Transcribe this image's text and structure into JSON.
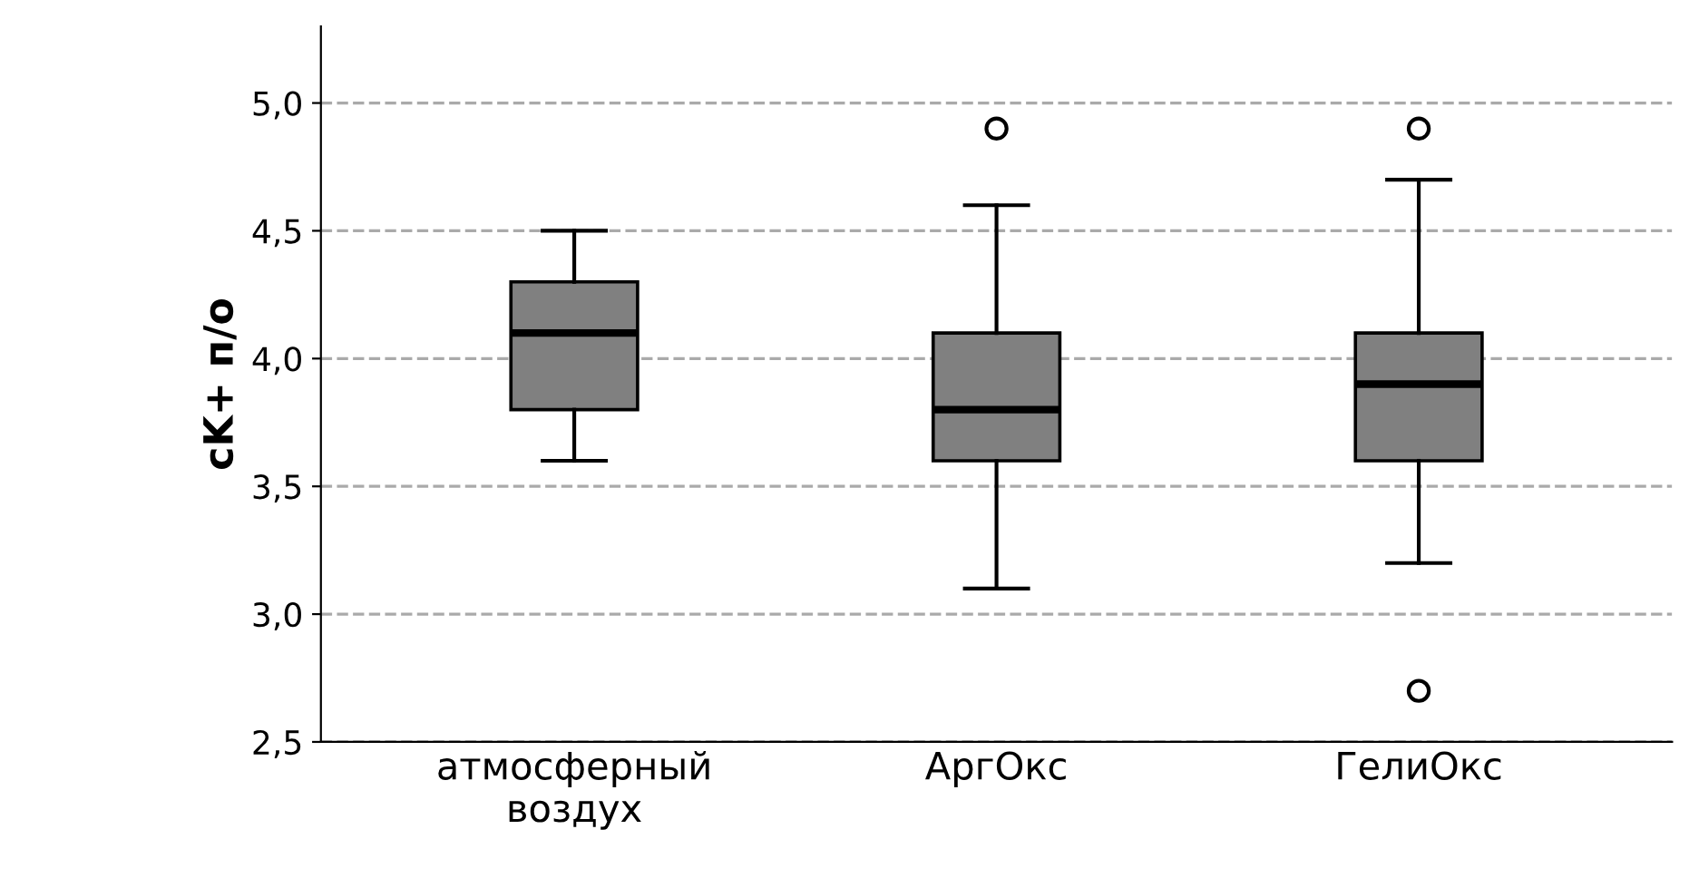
{
  "chart_data": {
    "type": "box",
    "ylabel": "cK+ п/о",
    "categories": [
      "атмосферный\nвоздух",
      "АргОкс",
      "ГелиОкс"
    ],
    "boxes": [
      {
        "low": 3.6,
        "q1": 3.8,
        "median": 4.1,
        "q3": 4.3,
        "high": 4.5
      },
      {
        "low": 3.1,
        "q1": 3.6,
        "median": 3.8,
        "q3": 4.1,
        "high": 4.6,
        "outliers": [
          4.9
        ]
      },
      {
        "low": 3.2,
        "q1": 3.6,
        "median": 3.9,
        "q3": 4.1,
        "high": 4.7,
        "outliers": [
          4.9,
          2.7
        ]
      }
    ],
    "color": "#808080",
    "ylim": [
      2.5,
      5.3
    ],
    "yticks": [
      {
        "value": 2.5,
        "label": "2,5"
      },
      {
        "value": 3.0,
        "label": "3,0"
      },
      {
        "value": 3.5,
        "label": "3,5"
      },
      {
        "value": 4.0,
        "label": "4,0"
      },
      {
        "value": 4.5,
        "label": "4,5"
      },
      {
        "value": 5.0,
        "label": "5,0"
      }
    ],
    "grid": "y",
    "line_style": "dashed"
  }
}
